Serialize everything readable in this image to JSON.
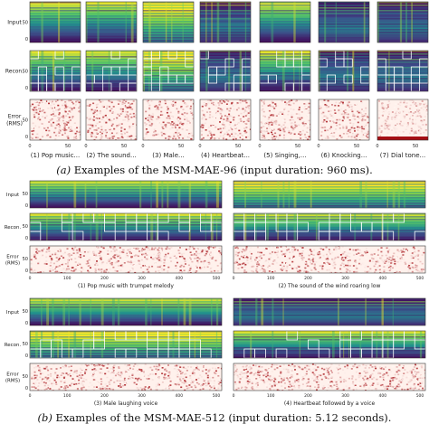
{
  "section_a": {
    "caption_letter": "(a)",
    "caption_text": " Examples of the MSM-MAE-96 (input duration: 960 ms).",
    "row_labels": [
      "Input",
      "Recon.",
      "Error\n(RMS)"
    ],
    "y_ticks": [
      "0",
      "50"
    ],
    "x_ticks": [
      "0",
      "50"
    ],
    "panels": [
      {
        "label": "(1) Pop music..."
      },
      {
        "label": "(2) The sound..."
      },
      {
        "label": "(3) Male..."
      },
      {
        "label": "(4) Heartbeat..."
      },
      {
        "label": "(5) Singing,..."
      },
      {
        "label": "(6) Knocking..."
      },
      {
        "label": "(7) Dial tone..."
      }
    ]
  },
  "section_b": {
    "caption_letter": "(b)",
    "caption_text": " Examples of the MSM-MAE-512 (input duration: 5.12 seconds).",
    "row_labels": [
      "Input",
      "Recon.",
      "Error\n(RMS)"
    ],
    "y_ticks": [
      "0",
      "50"
    ],
    "x_ticks": [
      "0",
      "100",
      "200",
      "300",
      "400",
      "500"
    ],
    "panels": [
      {
        "label": "(1) Pop music with trumpet melody"
      },
      {
        "label": "(2) The sound of the wind roaring low"
      },
      {
        "label": "(3) Male laughing voice"
      },
      {
        "label": "(4) Heartbeat followed by a voice"
      }
    ]
  },
  "colors": {
    "viridis_dark": "#440154",
    "viridis_mid": "#21918c",
    "viridis_bright": "#fde725",
    "error_light": "#fff5f0",
    "error_dark": "#a50f15",
    "mask_outline": "#ffffff"
  }
}
